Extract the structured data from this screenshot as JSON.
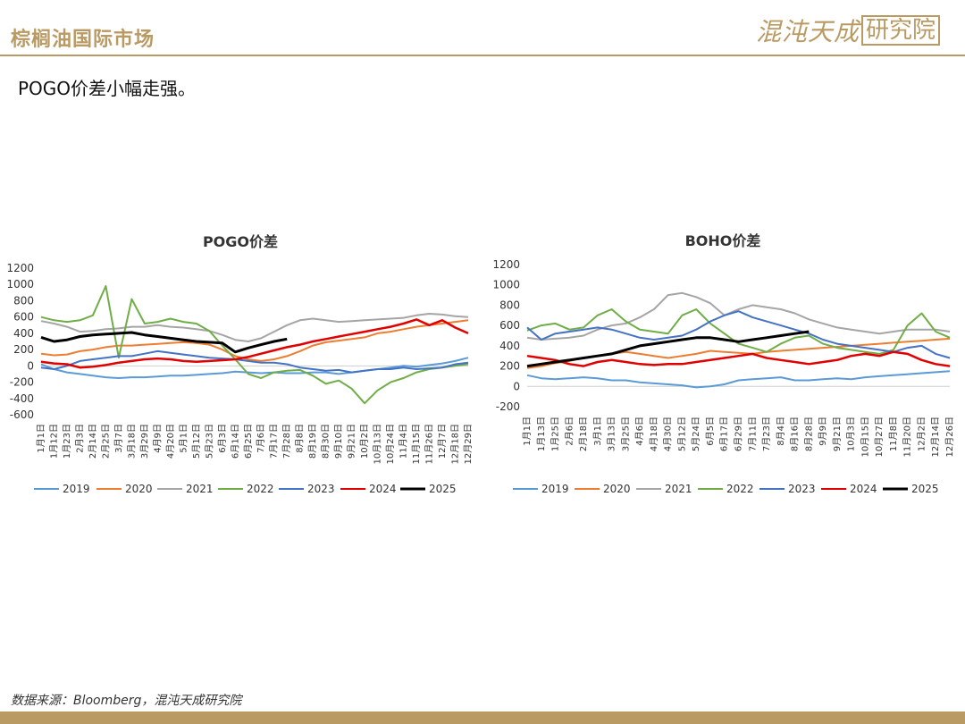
{
  "header": {
    "title": "棕榈油国际市场",
    "brand_main": "混沌天成",
    "brand_box": "研究院"
  },
  "subtitle": "POGO价差小幅走强。",
  "footer": {
    "source": "数据来源：Bloomberg，混沌天成研究院"
  },
  "colors": {
    "2019": "#5b9bd5",
    "2020": "#ed7d31",
    "2021": "#a5a5a5",
    "2022": "#70ad47",
    "2023": "#4472c4",
    "2024": "#e00000",
    "2025": "#000000",
    "brand": "#b99a62"
  },
  "chart_data": [
    {
      "type": "line",
      "title": "POGO价差",
      "ylim": [
        -600,
        1200
      ],
      "yticks": [
        -600,
        -400,
        -200,
        0,
        200,
        400,
        600,
        800,
        1000,
        1200
      ],
      "x_tick_labels": [
        "1月1日",
        "1月12日",
        "1月23日",
        "2月3日",
        "2月14日",
        "2月25日",
        "3月7日",
        "3月18日",
        "3月29日",
        "4月9日",
        "4月20日",
        "5月1日",
        "5月12日",
        "5月23日",
        "6月3日",
        "6月14日",
        "6月25日",
        "7月6日",
        "7月17日",
        "7月28日",
        "8月8日",
        "8月19日",
        "8月30日",
        "9月10日",
        "9月21日",
        "10月2日",
        "10月13日",
        "10月24日",
        "11月4日",
        "11月15日",
        "11月26日",
        "12月7日",
        "12月18日",
        "12月29日"
      ],
      "grid": false,
      "legend": "bottom",
      "series": [
        {
          "name": "2019",
          "values": [
            20,
            -40,
            -80,
            -100,
            -120,
            -140,
            -150,
            -140,
            -140,
            -130,
            -120,
            -120,
            -110,
            -100,
            -90,
            -70,
            -80,
            -90,
            -80,
            -90,
            -90,
            -80,
            -80,
            -100,
            -80,
            -60,
            -40,
            -20,
            0,
            -10,
            10,
            30,
            60,
            100
          ]
        },
        {
          "name": "2020",
          "values": [
            150,
            130,
            140,
            180,
            200,
            230,
            250,
            250,
            260,
            270,
            280,
            290,
            280,
            260,
            200,
            120,
            80,
            60,
            80,
            120,
            180,
            250,
            290,
            310,
            330,
            350,
            400,
            420,
            450,
            480,
            500,
            520,
            540,
            560
          ]
        },
        {
          "name": "2021",
          "values": [
            550,
            520,
            480,
            420,
            430,
            450,
            460,
            480,
            480,
            500,
            480,
            470,
            450,
            430,
            380,
            320,
            300,
            340,
            420,
            500,
            560,
            580,
            560,
            540,
            550,
            560,
            570,
            580,
            590,
            620,
            640,
            630,
            610,
            600
          ]
        },
        {
          "name": "2022",
          "values": [
            600,
            560,
            540,
            560,
            620,
            980,
            100,
            820,
            520,
            540,
            580,
            540,
            520,
            430,
            250,
            80,
            -100,
            -150,
            -80,
            -60,
            -50,
            -120,
            -220,
            -180,
            -280,
            -460,
            -300,
            -200,
            -150,
            -80,
            -40,
            -20,
            0,
            20
          ]
        },
        {
          "name": "2023",
          "values": [
            -20,
            -40,
            0,
            60,
            80,
            100,
            120,
            120,
            150,
            180,
            160,
            140,
            120,
            100,
            90,
            80,
            60,
            40,
            40,
            20,
            -20,
            -40,
            -60,
            -50,
            -80,
            -60,
            -40,
            -40,
            -20,
            -40,
            -30,
            -20,
            20,
            40
          ]
        },
        {
          "name": "2024",
          "values": [
            50,
            30,
            20,
            -20,
            -10,
            10,
            40,
            60,
            80,
            90,
            80,
            60,
            50,
            60,
            70,
            80,
            110,
            150,
            190,
            230,
            260,
            300,
            330,
            360,
            390,
            420,
            450,
            480,
            520,
            570,
            500,
            560,
            470,
            400
          ]
        },
        {
          "name": "2025",
          "values": [
            350,
            300,
            320,
            360,
            380,
            390,
            400,
            410,
            380,
            360,
            340,
            320,
            300,
            290,
            280,
            170,
            220,
            260,
            300,
            330
          ]
        }
      ]
    },
    {
      "type": "line",
      "title": "BOHO价差",
      "ylim": [
        -200,
        1200
      ],
      "yticks": [
        -200,
        0,
        200,
        400,
        600,
        800,
        1000,
        1200
      ],
      "x_tick_labels": [
        "1月1日",
        "1月13日",
        "1月25日",
        "2月6日",
        "2月18日",
        "3月1日",
        "3月13日",
        "3月25日",
        "4月6日",
        "4月18日",
        "4月30日",
        "5月12日",
        "5月24日",
        "6月5日",
        "6月17日",
        "6月29日",
        "7月11日",
        "7月23日",
        "8月4日",
        "8月16日",
        "8月28日",
        "9月9日",
        "9月21日",
        "10月3日",
        "10月15日",
        "10月27日",
        "11月8日",
        "11月20日",
        "12月2日",
        "12月14日",
        "12月26日"
      ],
      "grid": false,
      "legend": "bottom",
      "series": [
        {
          "name": "2019",
          "values": [
            110,
            80,
            70,
            80,
            90,
            80,
            60,
            60,
            40,
            30,
            20,
            10,
            -10,
            0,
            20,
            60,
            70,
            80,
            90,
            60,
            60,
            70,
            80,
            70,
            90,
            100,
            110,
            120,
            130,
            140,
            150
          ]
        },
        {
          "name": "2020",
          "values": [
            180,
            200,
            230,
            250,
            280,
            300,
            320,
            340,
            320,
            300,
            280,
            300,
            320,
            350,
            340,
            330,
            320,
            340,
            350,
            360,
            370,
            380,
            390,
            400,
            410,
            420,
            430,
            440,
            450,
            460,
            470
          ]
        },
        {
          "name": "2021",
          "values": [
            480,
            460,
            470,
            480,
            500,
            560,
            600,
            620,
            680,
            760,
            900,
            920,
            880,
            820,
            700,
            760,
            800,
            780,
            760,
            720,
            660,
            620,
            580,
            560,
            540,
            520,
            540,
            560,
            560,
            560,
            540
          ]
        },
        {
          "name": "2022",
          "values": [
            550,
            600,
            620,
            560,
            580,
            700,
            760,
            640,
            560,
            540,
            520,
            700,
            760,
            620,
            520,
            420,
            380,
            340,
            420,
            480,
            500,
            420,
            380,
            360,
            340,
            320,
            360,
            600,
            720,
            540,
            480
          ]
        },
        {
          "name": "2023",
          "values": [
            580,
            460,
            520,
            540,
            560,
            580,
            560,
            520,
            480,
            460,
            480,
            500,
            560,
            640,
            700,
            740,
            680,
            640,
            600,
            560,
            520,
            460,
            420,
            400,
            380,
            360,
            340,
            380,
            400,
            320,
            280
          ]
        },
        {
          "name": "2024",
          "values": [
            300,
            280,
            260,
            220,
            200,
            240,
            260,
            240,
            220,
            210,
            220,
            220,
            240,
            260,
            280,
            300,
            320,
            280,
            260,
            240,
            220,
            240,
            260,
            300,
            320,
            300,
            340,
            320,
            260,
            220,
            200
          ]
        },
        {
          "name": "2025",
          "values": [
            200,
            220,
            240,
            260,
            280,
            300,
            320,
            360,
            400,
            420,
            440,
            460,
            480,
            480,
            460,
            440,
            460,
            480,
            500,
            520,
            540
          ]
        }
      ]
    }
  ]
}
